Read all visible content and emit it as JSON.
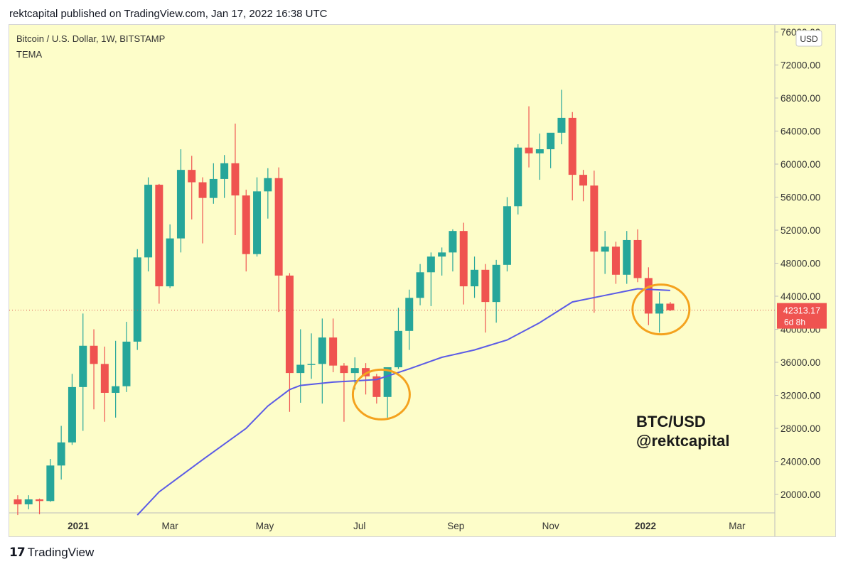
{
  "header": {
    "publisher_line": "rektcapital published on TradingView.com, Jan 17, 2022 16:38 UTC"
  },
  "chart_info": {
    "symbol_line": "Bitcoin / U.S. Dollar, 1W, BITSTAMP",
    "indicator": "TEMA"
  },
  "currency_label": "USD",
  "watermark": {
    "line1": "BTC/USD",
    "line2": "@rektcapital"
  },
  "last_price": {
    "value": "42313.17",
    "countdown": "6d 8h"
  },
  "footer": {
    "brand": "TradingView",
    "mark": "17"
  },
  "colors": {
    "background": "#fdfdc9",
    "up": "#26a69a",
    "down": "#ef5350",
    "tema": "#5b5be6",
    "highlight": "#f4a21e"
  },
  "chart_data": {
    "type": "candlestick",
    "title": "Bitcoin / U.S. Dollar, 1W, BITSTAMP",
    "ylim": [
      17500,
      76000
    ],
    "y_ticks": [
      "76000.00",
      "72000.00",
      "68000.00",
      "64000.00",
      "60000.00",
      "56000.00",
      "52000.00",
      "48000.00",
      "44000.00",
      "40000.00",
      "36000.00",
      "32000.00",
      "28000.00",
      "24000.00",
      "20000.00"
    ],
    "x_ticks": [
      "2021",
      "Mar",
      "May",
      "Jul",
      "Sep",
      "Nov",
      "2022",
      "Mar"
    ],
    "candles": [
      {
        "date": "2020-11-23",
        "o": 19400,
        "h": 19900,
        "l": 17500,
        "c": 18800
      },
      {
        "date": "2020-11-30",
        "o": 18800,
        "h": 19900,
        "l": 18200,
        "c": 19400
      },
      {
        "date": "2020-12-07",
        "o": 19400,
        "h": 19500,
        "l": 17600,
        "c": 19200
      },
      {
        "date": "2020-12-14",
        "o": 19200,
        "h": 24300,
        "l": 19100,
        "c": 23500
      },
      {
        "date": "2020-12-21",
        "o": 23500,
        "h": 28300,
        "l": 21800,
        "c": 26300
      },
      {
        "date": "2020-12-28",
        "o": 26300,
        "h": 34600,
        "l": 26000,
        "c": 33000
      },
      {
        "date": "2021-01-04",
        "o": 33000,
        "h": 41900,
        "l": 27700,
        "c": 38000
      },
      {
        "date": "2021-01-11",
        "o": 38000,
        "h": 40000,
        "l": 30300,
        "c": 35800
      },
      {
        "date": "2021-01-18",
        "o": 35800,
        "h": 37900,
        "l": 28800,
        "c": 32300
      },
      {
        "date": "2021-01-25",
        "o": 32300,
        "h": 38600,
        "l": 29300,
        "c": 33100
      },
      {
        "date": "2021-02-01",
        "o": 33100,
        "h": 40900,
        "l": 32400,
        "c": 38500
      },
      {
        "date": "2021-02-08",
        "o": 38500,
        "h": 49700,
        "l": 37500,
        "c": 48700
      },
      {
        "date": "2021-02-15",
        "o": 48700,
        "h": 58400,
        "l": 47000,
        "c": 57500
      },
      {
        "date": "2021-02-22",
        "o": 57500,
        "h": 57600,
        "l": 43100,
        "c": 45200
      },
      {
        "date": "2021-03-01",
        "o": 45200,
        "h": 52700,
        "l": 45000,
        "c": 51000
      },
      {
        "date": "2021-03-08",
        "o": 51000,
        "h": 61800,
        "l": 49300,
        "c": 59300
      },
      {
        "date": "2021-03-15",
        "o": 59300,
        "h": 61000,
        "l": 53300,
        "c": 57800
      },
      {
        "date": "2021-03-22",
        "o": 57800,
        "h": 58400,
        "l": 50400,
        "c": 55900
      },
      {
        "date": "2021-03-29",
        "o": 55900,
        "h": 60100,
        "l": 55200,
        "c": 58200
      },
      {
        "date": "2021-04-05",
        "o": 58200,
        "h": 61100,
        "l": 55900,
        "c": 60100
      },
      {
        "date": "2021-04-12",
        "o": 60100,
        "h": 64900,
        "l": 51400,
        "c": 56200
      },
      {
        "date": "2021-04-19",
        "o": 56200,
        "h": 56900,
        "l": 47000,
        "c": 49100
      },
      {
        "date": "2021-04-26",
        "o": 49100,
        "h": 58400,
        "l": 48800,
        "c": 56700
      },
      {
        "date": "2021-05-03",
        "o": 56700,
        "h": 59500,
        "l": 53400,
        "c": 58300
      },
      {
        "date": "2021-05-10",
        "o": 58300,
        "h": 59600,
        "l": 42100,
        "c": 46500
      },
      {
        "date": "2021-05-17",
        "o": 46500,
        "h": 46800,
        "l": 30000,
        "c": 34700
      },
      {
        "date": "2021-05-24",
        "o": 34700,
        "h": 40000,
        "l": 31100,
        "c": 35700
      },
      {
        "date": "2021-05-31",
        "o": 35700,
        "h": 39500,
        "l": 34000,
        "c": 35800
      },
      {
        "date": "2021-06-07",
        "o": 35800,
        "h": 41300,
        "l": 31000,
        "c": 39000
      },
      {
        "date": "2021-06-14",
        "o": 39000,
        "h": 41300,
        "l": 34800,
        "c": 35600
      },
      {
        "date": "2021-06-21",
        "o": 35600,
        "h": 35900,
        "l": 28800,
        "c": 34700
      },
      {
        "date": "2021-06-28",
        "o": 34700,
        "h": 36600,
        "l": 32700,
        "c": 35300
      },
      {
        "date": "2021-07-05",
        "o": 35300,
        "h": 35900,
        "l": 32100,
        "c": 34300
      },
      {
        "date": "2021-07-12",
        "o": 34300,
        "h": 34600,
        "l": 31000,
        "c": 31800
      },
      {
        "date": "2021-07-19",
        "o": 31800,
        "h": 35400,
        "l": 29300,
        "c": 35400
      },
      {
        "date": "2021-07-26",
        "o": 35400,
        "h": 42600,
        "l": 35200,
        "c": 39800
      },
      {
        "date": "2021-08-02",
        "o": 39800,
        "h": 44800,
        "l": 37500,
        "c": 43800
      },
      {
        "date": "2021-08-09",
        "o": 43800,
        "h": 47900,
        "l": 42900,
        "c": 46900
      },
      {
        "date": "2021-08-16",
        "o": 46900,
        "h": 49300,
        "l": 42800,
        "c": 48800
      },
      {
        "date": "2021-08-23",
        "o": 48800,
        "h": 49900,
        "l": 46500,
        "c": 49300
      },
      {
        "date": "2021-08-30",
        "o": 49300,
        "h": 52100,
        "l": 47000,
        "c": 51900
      },
      {
        "date": "2021-09-06",
        "o": 51900,
        "h": 52900,
        "l": 43000,
        "c": 45200
      },
      {
        "date": "2021-09-13",
        "o": 45200,
        "h": 48800,
        "l": 43800,
        "c": 47200
      },
      {
        "date": "2021-09-20",
        "o": 47200,
        "h": 47900,
        "l": 39600,
        "c": 43300
      },
      {
        "date": "2021-09-27",
        "o": 43300,
        "h": 48400,
        "l": 40800,
        "c": 47800
      },
      {
        "date": "2021-10-04",
        "o": 47800,
        "h": 56000,
        "l": 47000,
        "c": 54900
      },
      {
        "date": "2021-10-11",
        "o": 54900,
        "h": 62400,
        "l": 53900,
        "c": 62000
      },
      {
        "date": "2021-10-18",
        "o": 62000,
        "h": 67000,
        "l": 59600,
        "c": 61300
      },
      {
        "date": "2021-10-25",
        "o": 61300,
        "h": 63700,
        "l": 58100,
        "c": 61800
      },
      {
        "date": "2021-11-01",
        "o": 61800,
        "h": 63300,
        "l": 59500,
        "c": 63800
      },
      {
        "date": "2021-11-08",
        "o": 63800,
        "h": 69000,
        "l": 62400,
        "c": 65600
      },
      {
        "date": "2021-11-15",
        "o": 65600,
        "h": 66300,
        "l": 55600,
        "c": 58700
      },
      {
        "date": "2021-11-22",
        "o": 58700,
        "h": 59300,
        "l": 55500,
        "c": 57400
      },
      {
        "date": "2021-11-29",
        "o": 57400,
        "h": 59200,
        "l": 42000,
        "c": 49400
      },
      {
        "date": "2021-12-06",
        "o": 49400,
        "h": 51900,
        "l": 46700,
        "c": 50000
      },
      {
        "date": "2021-12-13",
        "o": 50000,
        "h": 50600,
        "l": 45500,
        "c": 46600
      },
      {
        "date": "2021-12-20",
        "o": 46600,
        "h": 51900,
        "l": 45500,
        "c": 50800
      },
      {
        "date": "2021-12-27",
        "o": 50800,
        "h": 52100,
        "l": 45700,
        "c": 46200
      },
      {
        "date": "2022-01-03",
        "o": 46200,
        "h": 47500,
        "l": 40500,
        "c": 41900
      },
      {
        "date": "2022-01-10",
        "o": 41900,
        "h": 44500,
        "l": 39600,
        "c": 43100
      },
      {
        "date": "2022-01-17",
        "o": 43100,
        "h": 43300,
        "l": 42200,
        "c": 42300
      }
    ],
    "tema": [
      {
        "date": "2021-02-08",
        "v": 17500
      },
      {
        "date": "2021-02-22",
        "v": 20300
      },
      {
        "date": "2021-03-22",
        "v": 24200
      },
      {
        "date": "2021-04-19",
        "v": 28000
      },
      {
        "date": "2021-05-03",
        "v": 30700
      },
      {
        "date": "2021-05-17",
        "v": 32700
      },
      {
        "date": "2021-05-24",
        "v": 33200
      },
      {
        "date": "2021-06-14",
        "v": 33600
      },
      {
        "date": "2021-07-12",
        "v": 33900
      },
      {
        "date": "2021-08-02",
        "v": 35200
      },
      {
        "date": "2021-08-23",
        "v": 36600
      },
      {
        "date": "2021-09-13",
        "v": 37500
      },
      {
        "date": "2021-10-04",
        "v": 38700
      },
      {
        "date": "2021-10-25",
        "v": 40800
      },
      {
        "date": "2021-11-15",
        "v": 43300
      },
      {
        "date": "2021-12-06",
        "v": 44100
      },
      {
        "date": "2021-12-27",
        "v": 44900
      },
      {
        "date": "2022-01-17",
        "v": 44700
      }
    ],
    "annotations": [
      {
        "type": "circle",
        "center_date": "2021-07-15",
        "center_value": 32100,
        "label": ""
      },
      {
        "type": "circle",
        "center_date": "2022-01-11",
        "center_value": 42400,
        "label": ""
      }
    ]
  }
}
